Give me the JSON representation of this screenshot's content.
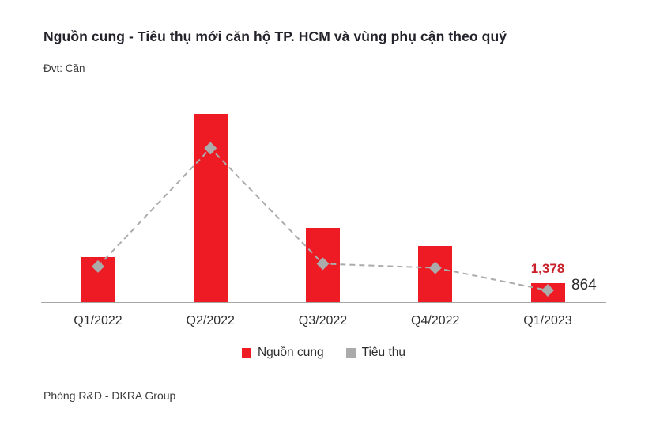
{
  "page": {
    "title": "Nguồn cung - Tiêu thụ mới căn hộ TP. HCM và vùng phụ cận theo quý",
    "unit_label": "Đvt: Căn",
    "footer": "Phòng R&D - DKRA Group"
  },
  "colors": {
    "bar_red": "#ee1b24",
    "data_label_red": "#c9202a",
    "marker_gray": "#ababab",
    "axis_gray": "#a6a6a6",
    "title_dark": "#24222b",
    "text_dark": "#2f2f2f"
  },
  "chart_data": {
    "type": "combo",
    "title": "Nguồn cung - Tiêu thụ mới căn hộ TP. HCM và vùng phụ cận theo quý",
    "xlabel": "",
    "ylabel": "Căn",
    "categories": [
      "Q1/2022",
      "Q2/2022",
      "Q3/2022",
      "Q4/2022",
      "Q1/2023"
    ],
    "series": [
      {
        "name": "Nguồn cung",
        "type": "bar",
        "color": "#ee1b24",
        "values": [
          3300,
          13700,
          5400,
          4100,
          1378
        ]
      },
      {
        "name": "Tiêu thụ",
        "type": "line",
        "line_style": "dashed",
        "marker": "diamond",
        "color": "#ababab",
        "values": [
          2600,
          11200,
          2800,
          2500,
          864
        ]
      }
    ],
    "data_labels": [
      {
        "series": "Nguồn cung",
        "category": "Q1/2023",
        "text": "1,378"
      },
      {
        "series": "Tiêu thụ",
        "category": "Q1/2023",
        "text": "864"
      }
    ],
    "ylim": [
      0,
      14000
    ],
    "grid": false,
    "y_axis_visible": false,
    "legend_position": "bottom"
  },
  "legend": {
    "items": [
      {
        "label": "Nguồn cung",
        "marker": "square",
        "color": "#ee1b24"
      },
      {
        "label": "Tiêu thụ",
        "marker": "square",
        "color": "#ababab"
      }
    ]
  }
}
